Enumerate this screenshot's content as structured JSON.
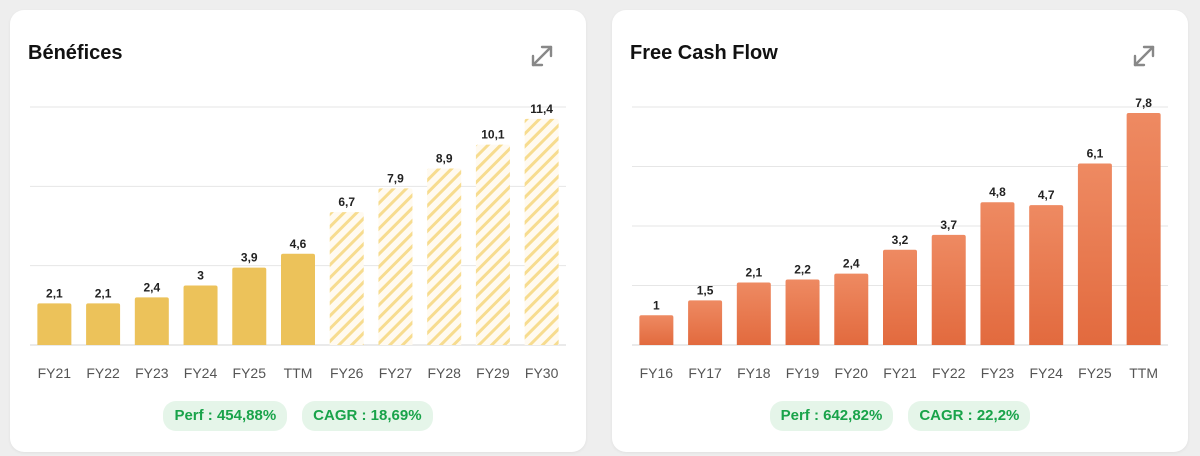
{
  "cards": [
    {
      "title": "Bénéfices",
      "perf": "Perf : 454,88%",
      "cagr": "CAGR : 18,69%",
      "color": "#ecc25a",
      "hatch_color": "#f7dc8f",
      "icon": "expand-icon"
    },
    {
      "title": "Free Cash Flow",
      "perf": "Perf : 642,82%",
      "cagr": "CAGR : 22,2%",
      "color": "#e26a3e",
      "gradient_top": "#ee8a62",
      "icon": "expand-icon"
    }
  ],
  "chart_data": [
    {
      "type": "bar",
      "title": "Bénéfices",
      "categories": [
        "FY21",
        "FY22",
        "FY23",
        "FY24",
        "FY25",
        "TTM",
        "FY26",
        "FY27",
        "FY28",
        "FY29",
        "FY30"
      ],
      "values": [
        2.1,
        2.1,
        2.4,
        3,
        3.9,
        4.6,
        6.7,
        7.9,
        8.9,
        10.1,
        11.4
      ],
      "value_labels": [
        "2,1",
        "2,1",
        "2,4",
        "3",
        "3,9",
        "4,6",
        "6,7",
        "7,9",
        "8,9",
        "10,1",
        "11,4"
      ],
      "estimate": [
        false,
        false,
        false,
        false,
        false,
        false,
        true,
        true,
        true,
        true,
        true
      ],
      "ylim": [
        0,
        12
      ],
      "grid": true,
      "gridlines": [
        0,
        4,
        8,
        12
      ]
    },
    {
      "type": "bar",
      "title": "Free Cash Flow",
      "categories": [
        "FY16",
        "FY17",
        "FY18",
        "FY19",
        "FY20",
        "FY21",
        "FY22",
        "FY23",
        "FY24",
        "FY25",
        "TTM"
      ],
      "values": [
        1,
        1.5,
        2.1,
        2.2,
        2.4,
        3.2,
        3.7,
        4.8,
        4.7,
        6.1,
        7.8
      ],
      "value_labels": [
        "1",
        "1,5",
        "2,1",
        "2,2",
        "2,4",
        "3,2",
        "3,7",
        "4,8",
        "4,7",
        "6,1",
        "7,8"
      ],
      "estimate": [
        false,
        false,
        false,
        false,
        false,
        false,
        false,
        false,
        false,
        false,
        false
      ],
      "ylim": [
        0,
        8
      ],
      "grid": true,
      "gridlines": [
        0,
        2,
        4,
        6,
        8
      ]
    }
  ]
}
